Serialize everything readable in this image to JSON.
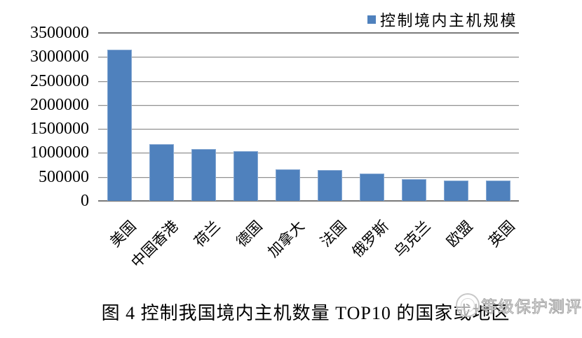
{
  "figure": {
    "caption": "图 4 控制我国境内主机数量 TOP10 的国家或地区",
    "watermark_text": "等级保护测评",
    "watermark_logo": "circular-seal-logo"
  },
  "chart_data": {
    "type": "bar",
    "title": "",
    "legend_position": "top-right",
    "categories": [
      "美国",
      "中国香港",
      "荷兰",
      "德国",
      "加拿大",
      "法国",
      "俄罗斯",
      "乌克兰",
      "欧盟",
      "英国"
    ],
    "series": [
      {
        "name": "控制境内主机规模",
        "values": [
          3150000,
          1180000,
          1080000,
          1030000,
          650000,
          640000,
          570000,
          450000,
          430000,
          420000
        ]
      }
    ],
    "xlabel": "",
    "ylabel": "",
    "ylim": [
      0,
      3500000
    ],
    "ytick_step": 500000,
    "ytick_labels": [
      "3500000",
      "3000000",
      "2500000",
      "2000000",
      "1500000",
      "1000000",
      "500000",
      "0"
    ],
    "grid": "horizontal",
    "x_label_rotation_deg": 45,
    "bar_color": "#4f81bd",
    "bar_border_color": "#84a7d2",
    "gridline_color": "#919191",
    "axis_line_color": "#808080",
    "text_color": "#000000",
    "background_color": "#ffffff"
  }
}
